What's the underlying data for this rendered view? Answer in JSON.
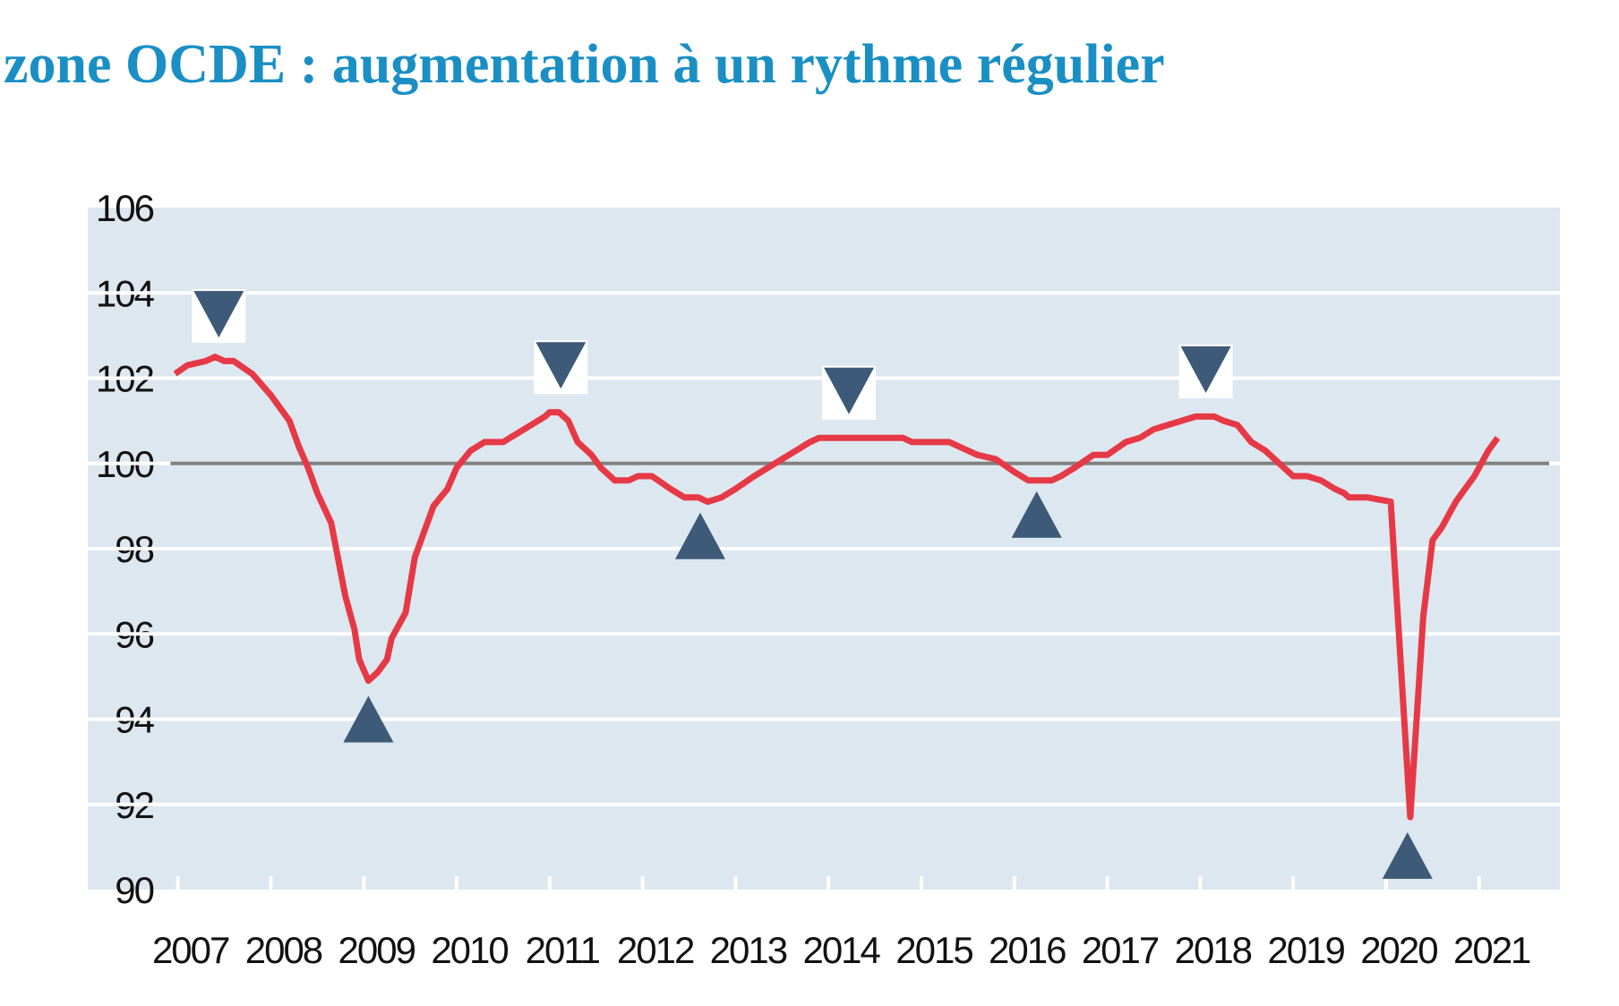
{
  "chart_data": {
    "type": "line",
    "title": "zone OCDE :  augmentation à un rythme régulier",
    "xlim": [
      2006.03,
      2021.87
    ],
    "xticks": [
      2007,
      2008,
      2009,
      2010,
      2011,
      2012,
      2013,
      2014,
      2015,
      2016,
      2017,
      2018,
      2019,
      2020,
      2021
    ],
    "ylim": [
      90,
      106
    ],
    "yticks": [
      90,
      92,
      94,
      96,
      98,
      100,
      102,
      104,
      106
    ],
    "grid": true,
    "reference": 100,
    "series": [
      {
        "color": "#e63946",
        "x": [
          2006.97,
          2007.1,
          2007.3,
          2007.4,
          2007.5,
          2007.6,
          2007.8,
          2008.0,
          2008.1,
          2008.2,
          2008.3,
          2008.4,
          2008.5,
          2008.65,
          2008.8,
          2008.9,
          2008.95,
          2009.05,
          2009.15,
          2009.25,
          2009.3,
          2009.45,
          2009.55,
          2009.65,
          2009.75,
          2009.9,
          2010.0,
          2010.15,
          2010.3,
          2010.5,
          2010.65,
          2010.8,
          2010.95,
          2011.0,
          2011.1,
          2011.2,
          2011.3,
          2011.45,
          2011.55,
          2011.7,
          2011.85,
          2011.95,
          2012.1,
          2012.3,
          2012.45,
          2012.6,
          2012.7,
          2012.85,
          2013.0,
          2013.2,
          2013.35,
          2013.5,
          2013.65,
          2013.8,
          2013.9,
          2014.2,
          2014.6,
          2014.8,
          2014.9,
          2015.3,
          2015.4,
          2015.6,
          2015.8,
          2016.0,
          2016.15,
          2016.4,
          2016.5,
          2016.65,
          2016.85,
          2017.0,
          2017.2,
          2017.35,
          2017.5,
          2017.65,
          2017.8,
          2017.95,
          2018.15,
          2018.25,
          2018.4,
          2018.55,
          2018.7,
          2018.85,
          2019.0,
          2019.15,
          2019.3,
          2019.45,
          2019.55,
          2019.6,
          2019.8,
          2020.05,
          2020.26,
          2020.4,
          2020.5,
          2020.6,
          2020.75,
          2020.85,
          2020.95,
          2021.1,
          2021.2
        ],
        "values": [
          102.1,
          102.3,
          102.4,
          102.5,
          102.4,
          102.4,
          102.1,
          101.6,
          101.3,
          101.0,
          100.4,
          99.9,
          99.3,
          98.6,
          96.9,
          96.1,
          95.4,
          94.9,
          95.1,
          95.4,
          95.9,
          96.5,
          97.8,
          98.4,
          99.0,
          99.4,
          99.9,
          100.3,
          100.5,
          100.5,
          100.7,
          100.9,
          101.1,
          101.2,
          101.2,
          101.0,
          100.5,
          100.2,
          99.9,
          99.6,
          99.6,
          99.7,
          99.7,
          99.4,
          99.2,
          99.2,
          99.1,
          99.2,
          99.4,
          99.7,
          99.9,
          100.1,
          100.3,
          100.5,
          100.6,
          100.6,
          100.6,
          100.6,
          100.5,
          100.5,
          100.4,
          100.2,
          100.1,
          99.8,
          99.6,
          99.6,
          99.7,
          99.9,
          100.2,
          100.2,
          100.5,
          100.6,
          100.8,
          100.9,
          101.0,
          101.1,
          101.1,
          101.0,
          100.9,
          100.5,
          100.3,
          100.0,
          99.7,
          99.7,
          99.6,
          99.4,
          99.3,
          99.2,
          99.2,
          99.1,
          91.7,
          96.4,
          98.2,
          98.5,
          99.1,
          99.4,
          99.7,
          100.3,
          100.6
        ]
      }
    ],
    "peaks": {
      "x": [
        2007.44,
        2011.12,
        2014.22,
        2018.06
      ],
      "values": [
        103.5,
        102.3,
        101.7,
        102.2
      ]
    },
    "troughs": {
      "x": [
        2009.05,
        2012.62,
        2016.24,
        2020.23
      ],
      "values": [
        94.0,
        98.3,
        98.8,
        90.8
      ]
    }
  }
}
